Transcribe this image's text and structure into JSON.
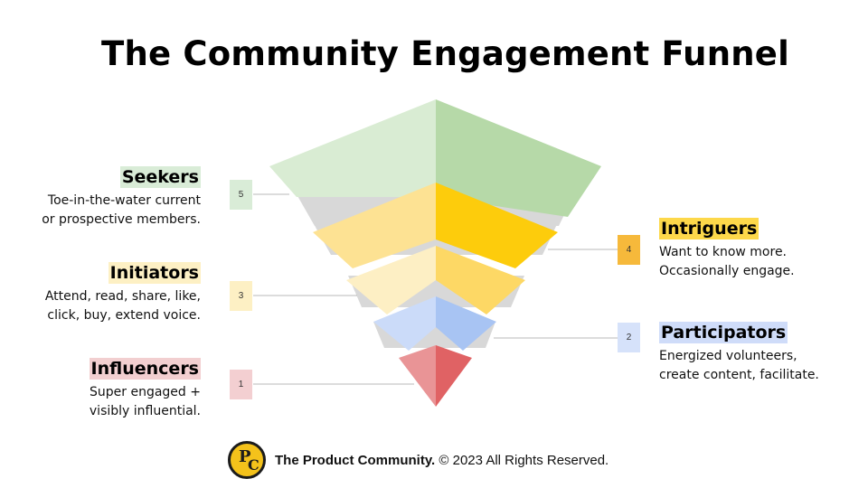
{
  "title": "The Community Engagement Funnel",
  "stages": {
    "seekers": {
      "name": "Seekers",
      "number": "5",
      "desc_line1": "Toe-in-the-water current",
      "desc_line2": "or prospective members.",
      "highlight": "#d9ecd7",
      "box": "#d9ecd7"
    },
    "intriguers": {
      "name": "Intriguers",
      "number": "4",
      "desc_line1": "Want to know more.",
      "desc_line2": "Occasionally engage.",
      "highlight": "#fdd84a",
      "box": "#f6b93b"
    },
    "initiators": {
      "name": "Initiators",
      "number": "3",
      "desc_line1": "Attend, read, share, like,",
      "desc_line2": "click, buy, extend voice.",
      "highlight": "#fdf0c4",
      "box": "#fdf0c4"
    },
    "participators": {
      "name": "Participators",
      "number": "2",
      "desc_line1": "Energized volunteers,",
      "desc_line2": "create content, facilitate.",
      "highlight": "#cfdcf9",
      "box": "#d6e2fa"
    },
    "influencers": {
      "name": "Influencers",
      "number": "1",
      "desc_line1": "Super engaged +",
      "desc_line2": "visibly influential.",
      "highlight": "#f2cfd0",
      "box": "#f3cfd1"
    }
  },
  "footer": {
    "brand": "The Product Community.",
    "copyright": "© 2023 All Rights Reserved.",
    "logo_text_p": "P",
    "logo_text_c": "C"
  },
  "funnel_colors": {
    "seekers_left": "#d9ecd3",
    "seekers_right": "#b6d9a8",
    "intriguers_left": "#fde293",
    "intriguers_right": "#fdcc0c",
    "initiators_left": "#fdefc4",
    "initiators_right": "#fdd865",
    "participators_left": "#cbdbf9",
    "participators_right": "#a8c4f3",
    "influencers_left": "#e99496",
    "influencers_right": "#e06264",
    "gap": "#d8d8d8",
    "connector": "#b8b8b8"
  }
}
